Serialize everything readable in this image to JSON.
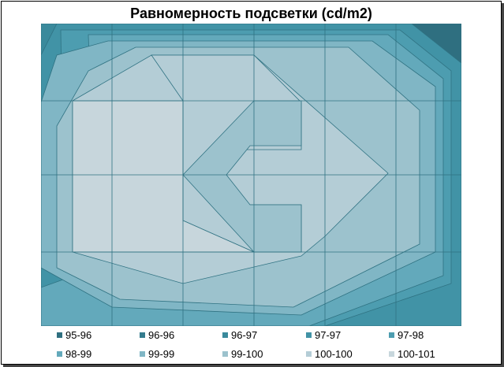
{
  "chart_data": {
    "type": "heatmap",
    "title": "Равномерность подсветки (cd/m2)",
    "legend": {
      "placement": "bottom",
      "entries": [
        {
          "label": "95-96",
          "color": "#2f6f80"
        },
        {
          "label": "96-96",
          "color": "#347c8e"
        },
        {
          "label": "96-97",
          "color": "#3a8a9c"
        },
        {
          "label": "97-97",
          "color": "#4193a6"
        },
        {
          "label": "97-98",
          "color": "#4d9db0"
        },
        {
          "label": "98-99",
          "color": "#63a9bb"
        },
        {
          "label": "99-99",
          "color": "#80b6c5"
        },
        {
          "label": "99-100",
          "color": "#9cc2cd"
        },
        {
          "label": "100-100",
          "color": "#b4cdd6"
        },
        {
          "label": "100-101",
          "color": "#c7d6dc"
        }
      ]
    },
    "grid": true
  }
}
